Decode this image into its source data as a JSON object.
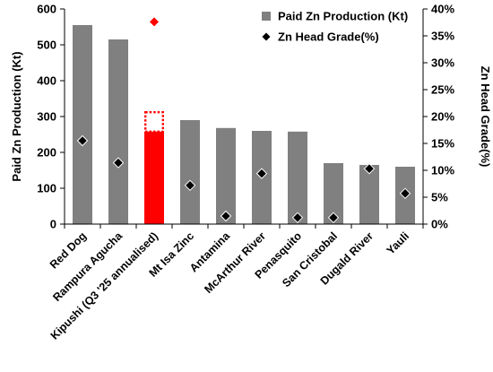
{
  "chart_data": {
    "type": "bar",
    "categories": [
      "Red Dog",
      "Rampura Agucha",
      "Kipushi (Q3 '25 annualised)",
      "Mt Isa Zinc",
      "Antamina",
      "McArthur River",
      "Penasquito",
      "San Cristobal",
      "Dugald River",
      "Yauli"
    ],
    "series": [
      {
        "name": "Paid Zn Production (Kt)",
        "type": "bar",
        "axis": "left",
        "values": [
          555,
          515,
          258,
          290,
          268,
          260,
          258,
          170,
          165,
          160
        ]
      },
      {
        "name": "Zn Head Grade(%)",
        "type": "scatter",
        "axis": "right",
        "values": [
          15.5,
          11.4,
          37.6,
          7.2,
          1.5,
          9.4,
          1.2,
          1.2,
          10.3,
          5.7
        ]
      }
    ],
    "highlight": {
      "category": "Kipushi (Q3 '25 annualised)",
      "color": "#ff0000",
      "dashed_extension_to": 315
    },
    "ylabel": "Paid Zn Production (Kt)",
    "y2label": "Zn Head Grade(%)",
    "ylim": [
      0,
      600
    ],
    "yticks": [
      0,
      100,
      200,
      300,
      400,
      500,
      600
    ],
    "y2lim": [
      0,
      40
    ],
    "y2ticks": [
      "0%",
      "5%",
      "10%",
      "15%",
      "20%",
      "25%",
      "30%",
      "35%",
      "40%"
    ],
    "grid": false,
    "legend_position": "top-right",
    "colors": {
      "bar": "#808080",
      "highlight": "#ff0000",
      "marker": "#000000",
      "marker_edge": "#ffffff"
    }
  }
}
